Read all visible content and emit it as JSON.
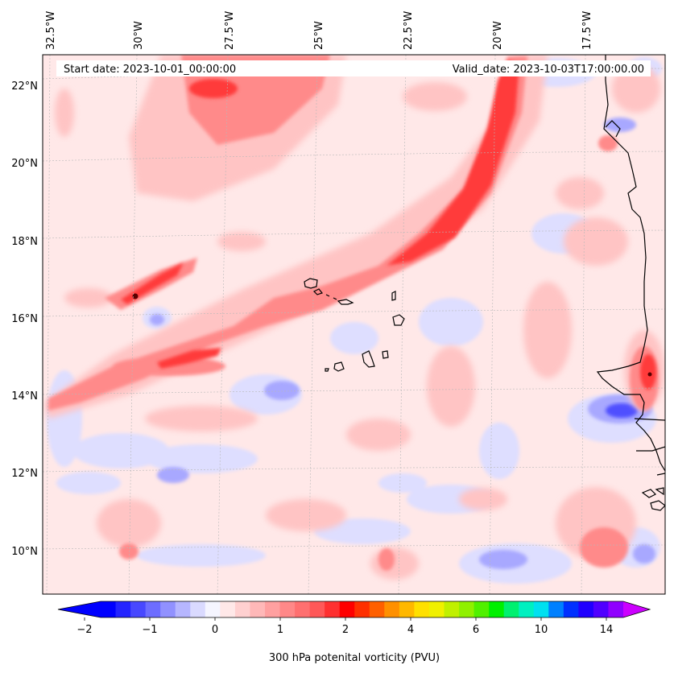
{
  "map": {
    "longitude_labels": [
      "32.5°W",
      "30°W",
      "27.5°W",
      "25°W",
      "22.5°W",
      "20°W",
      "17.5°W"
    ],
    "latitude_labels": [
      "22°N",
      "20°N",
      "18°N",
      "16°N",
      "14°N",
      "12°N",
      "10°N"
    ],
    "start_date_text": "Start date: 2023-10-01_00:00:00",
    "valid_date_text": "Valid_date: 2023-10-03T17:00:00.00"
  },
  "colorbar": {
    "tick_labels": [
      "−2",
      "−1",
      "0",
      "1",
      "2",
      "4",
      "6",
      "10",
      "14"
    ],
    "label": "300 hPa potenital vorticity (PVU)",
    "colors": [
      "#0000ff",
      "#2424ff",
      "#4848ff",
      "#6d6dff",
      "#9191ff",
      "#b6b6ff",
      "#dadaff",
      "#f5f5ff",
      "#ffe8e8",
      "#ffd0d0",
      "#ffb8b8",
      "#ffa0a0",
      "#ff8888",
      "#ff7070",
      "#ff5858",
      "#ff3030",
      "#ff0000",
      "#ff3000",
      "#ff6000",
      "#ff9000",
      "#ffb800",
      "#ffe000",
      "#f0f000",
      "#c0f000",
      "#90f000",
      "#50f000",
      "#00f000",
      "#00f070",
      "#00f0c0",
      "#00e0f0",
      "#0080ff",
      "#0030ff",
      "#2000ff",
      "#5000ff",
      "#9000ff"
    ],
    "under_color": "#0000ff",
    "over_color": "#cc00ff"
  },
  "colors": {
    "background_pink": "#ffe8e8",
    "light_red": "#ffc4c4",
    "medium_red": "#ff8a8a",
    "strong_red": "#ff3a3a",
    "light_blue": "#dedeff",
    "medium_blue": "#a8a8ff",
    "strong_blue": "#5050ff"
  }
}
